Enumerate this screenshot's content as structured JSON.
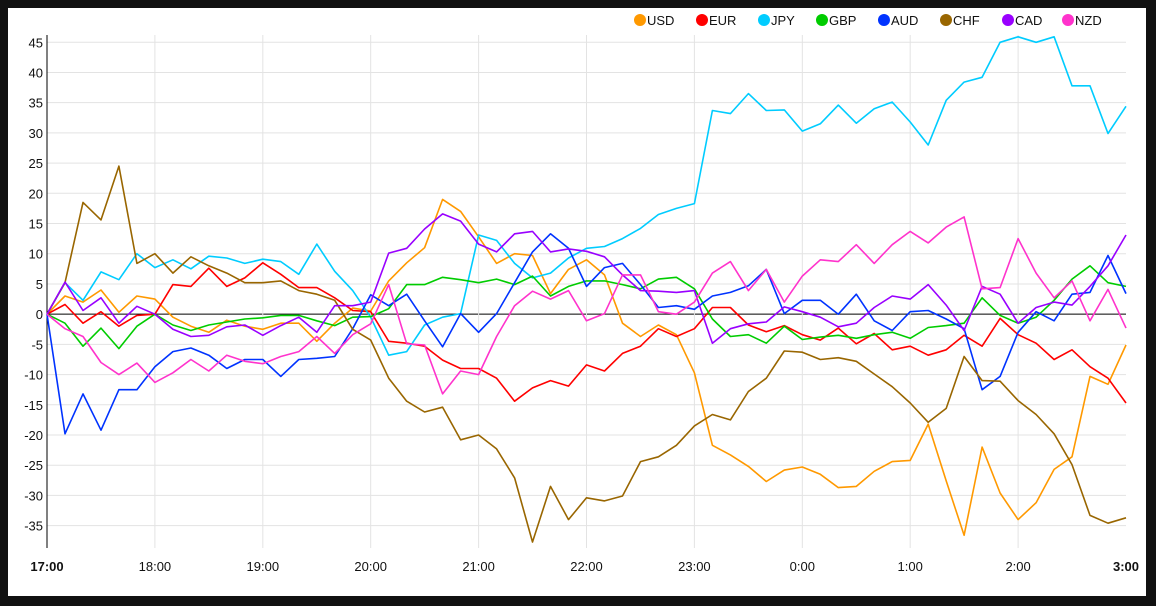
{
  "chart_data": {
    "type": "line",
    "title": "",
    "xlabel": "",
    "ylabel": "",
    "legend_position": "top-right",
    "grid": true,
    "ylim": [
      -38.7,
      46.2
    ],
    "y_ticks": [
      45,
      40,
      35,
      30,
      25,
      20,
      15,
      10,
      5,
      0,
      -5,
      -10,
      -15,
      -20,
      -25,
      -30,
      -35
    ],
    "x_ticks": [
      "17:00",
      "18:00",
      "19:00",
      "20:00",
      "21:00",
      "22:00",
      "23:00",
      "0:00",
      "1:00",
      "2:00",
      "3:00"
    ],
    "x_interval_minutes": 10,
    "series": [
      {
        "name": "USD",
        "color": "#ff9900",
        "values": [
          0,
          3,
          2,
          4,
          0.3,
          3,
          2.5,
          -0.5,
          -2,
          -3,
          -1,
          -2,
          -2.5,
          -1.5,
          -1.5,
          -4.5,
          -1.5,
          1,
          0.5,
          5.5,
          8.5,
          11,
          19,
          17,
          12.8,
          8.4,
          10,
          9.7,
          3.4,
          7.4,
          9,
          6.5,
          -1.5,
          -3.7,
          -1.8,
          -3.4,
          -9.7,
          -21.7,
          -23.3,
          -25.2,
          -27.7,
          -25.8,
          -25.3,
          -26.5,
          -28.7,
          -28.5,
          -26,
          -24.4,
          -24.2,
          -18.2,
          -27.6,
          -36.6,
          -22,
          -29.6,
          -34,
          -31.2,
          -25.7,
          -23.6,
          -10.3,
          -11.6,
          -5.1
        ]
      },
      {
        "name": "EUR",
        "color": "#ff0000",
        "values": [
          0,
          1.6,
          -1.5,
          0.4,
          -2,
          -0.2,
          0,
          4.9,
          4.6,
          7.6,
          4.6,
          6,
          8.5,
          6.6,
          4.4,
          4.4,
          2.7,
          0.6,
          0.4,
          -4.5,
          -4.8,
          -5.3,
          -7.6,
          -9,
          -9,
          -10.6,
          -14.4,
          -12.2,
          -11,
          -11.9,
          -8.4,
          -9.4,
          -6.5,
          -5.3,
          -2.4,
          -3.7,
          -2.4,
          1.1,
          1.1,
          -1.8,
          -2.9,
          -1.9,
          -3.4,
          -4.3,
          -2.3,
          -4.9,
          -3.2,
          -5.9,
          -5.3,
          -6.8,
          -5.9,
          -3.5,
          -5.3,
          -0.7,
          -3.4,
          -4.8,
          -7.5,
          -5.9,
          -8.7,
          -10.6,
          -14.7
        ]
      },
      {
        "name": "JPY",
        "color": "#00ccff",
        "values": [
          0,
          5.2,
          2.3,
          7,
          5.7,
          10,
          7.7,
          9,
          7.5,
          9.6,
          9.3,
          8.4,
          9.1,
          8.7,
          6.6,
          11.6,
          7.1,
          3.9,
          -0.5,
          -6.8,
          -6.2,
          -1.8,
          -0.5,
          0.1,
          13.1,
          12.2,
          8.4,
          6,
          6.8,
          9.3,
          10.9,
          11.2,
          12.5,
          14.2,
          16.5,
          17.5,
          18.3,
          33.7,
          33.2,
          36.5,
          33.7,
          33.8,
          30.3,
          31.5,
          34.6,
          31.6,
          34,
          35.1,
          31.8,
          28,
          35.4,
          38.4,
          39.2,
          45,
          45.9,
          45,
          45.9,
          37.8,
          37.8,
          29.9,
          34.4
        ]
      },
      {
        "name": "GBP",
        "color": "#00cc00",
        "values": [
          0,
          -1.5,
          -5.3,
          -2.3,
          -5.7,
          -2,
          0,
          -1.8,
          -2.7,
          -1.8,
          -1.3,
          -0.8,
          -0.6,
          -0.2,
          -0.2,
          -1.1,
          -1.9,
          -0.5,
          -0.4,
          0.9,
          4.9,
          4.9,
          6.1,
          5.7,
          5.2,
          5.8,
          4.9,
          6.3,
          3,
          4.6,
          5.5,
          5.5,
          4.9,
          4.2,
          5.8,
          6.1,
          4.2,
          -0.8,
          -3.7,
          -3.4,
          -4.8,
          -2,
          -4.2,
          -3.8,
          -3.5,
          -4,
          -3.4,
          -3,
          -4,
          -2.2,
          -1.9,
          -1.5,
          2.7,
          -0.2,
          -1.5,
          -0.5,
          2.3,
          5.8,
          8,
          5.2,
          4.6
        ]
      },
      {
        "name": "AUD",
        "color": "#0033ff",
        "values": [
          0,
          -19.8,
          -13.2,
          -19.2,
          -12.5,
          -12.5,
          -8.7,
          -6.2,
          -5.6,
          -6.8,
          -9,
          -7.5,
          -7.5,
          -10.3,
          -7.5,
          -7.3,
          -7,
          -2.4,
          3.2,
          1.4,
          3.3,
          -1.1,
          -5.4,
          0.1,
          -3,
          0.1,
          5.2,
          10.3,
          13.3,
          10.9,
          4.6,
          7.7,
          8.4,
          4.9,
          1.1,
          1.4,
          0.8,
          3,
          3.6,
          4.7,
          7.4,
          0.1,
          2.3,
          2.3,
          0,
          3.3,
          -1.1,
          -2.7,
          0.4,
          0.6,
          -0.8,
          -2.4,
          -12.5,
          -10.3,
          -3,
          0.4,
          -1.1,
          3.3,
          3.6,
          9.7,
          3.4
        ]
      },
      {
        "name": "CHF",
        "color": "#996600",
        "values": [
          0,
          5.2,
          18.5,
          15.6,
          24.5,
          8.4,
          10,
          6.8,
          9.5,
          8,
          6.8,
          5.2,
          5.2,
          5.5,
          3.9,
          3.3,
          2.3,
          -2.5,
          -4.3,
          -10.6,
          -14.4,
          -16.2,
          -15.4,
          -20.8,
          -20,
          -22.3,
          -27.1,
          -37.7,
          -28.5,
          -34,
          -30.4,
          -30.9,
          -30.1,
          -24.4,
          -23.6,
          -21.7,
          -18.5,
          -16.6,
          -17.5,
          -12.8,
          -10.6,
          -6.1,
          -6.3,
          -7.5,
          -7.2,
          -7.8,
          -9.9,
          -12,
          -14.7,
          -17.9,
          -15.6,
          -7,
          -11,
          -11.1,
          -14.3,
          -16.6,
          -19.8,
          -24.9,
          -33.3,
          -34.6,
          -33.7
        ]
      },
      {
        "name": "CAD",
        "color": "#9900ff",
        "values": [
          0,
          5.3,
          0.6,
          2.7,
          -1.5,
          1.3,
          0,
          -2.5,
          -3.7,
          -3.5,
          -2.1,
          -1.8,
          -3.5,
          -1.9,
          -0.5,
          -3,
          1.4,
          1.4,
          2,
          10.1,
          10.9,
          14.1,
          16.6,
          15.4,
          11.6,
          10.3,
          13.3,
          13.7,
          10.3,
          10.8,
          10.4,
          9.5,
          6.5,
          3.9,
          3.8,
          3.6,
          3.9,
          -4.8,
          -2.4,
          -1.6,
          -1.3,
          1.2,
          0.4,
          -0.5,
          -2.1,
          -1.5,
          1.1,
          3,
          2.5,
          4.9,
          1.5,
          -2.7,
          4.6,
          3.3,
          -1.5,
          1.1,
          2,
          1.5,
          4.6,
          8,
          13.1
        ]
      },
      {
        "name": "NZD",
        "color": "#ff33cc",
        "values": [
          0,
          -2.4,
          -3.7,
          -8,
          -10,
          -8.1,
          -11.3,
          -9.7,
          -7.5,
          -9.4,
          -6.8,
          -7.8,
          -8.2,
          -7,
          -6.2,
          -3.7,
          -6.5,
          -3.4,
          -1.6,
          4.9,
          -4.9,
          -5.1,
          -13.2,
          -9.4,
          -10,
          -3.7,
          1.4,
          3.8,
          2.5,
          3.9,
          -1.1,
          0.1,
          6.5,
          6.5,
          0.4,
          0,
          2,
          6.8,
          8.7,
          3.9,
          7.4,
          2,
          6.3,
          9,
          8.7,
          11.5,
          8.4,
          11.5,
          13.7,
          11.8,
          14.4,
          16.1,
          4.2,
          4.4,
          12.5,
          6.8,
          2.7,
          5.5,
          -1.1,
          4.1,
          -2.3
        ]
      }
    ]
  }
}
